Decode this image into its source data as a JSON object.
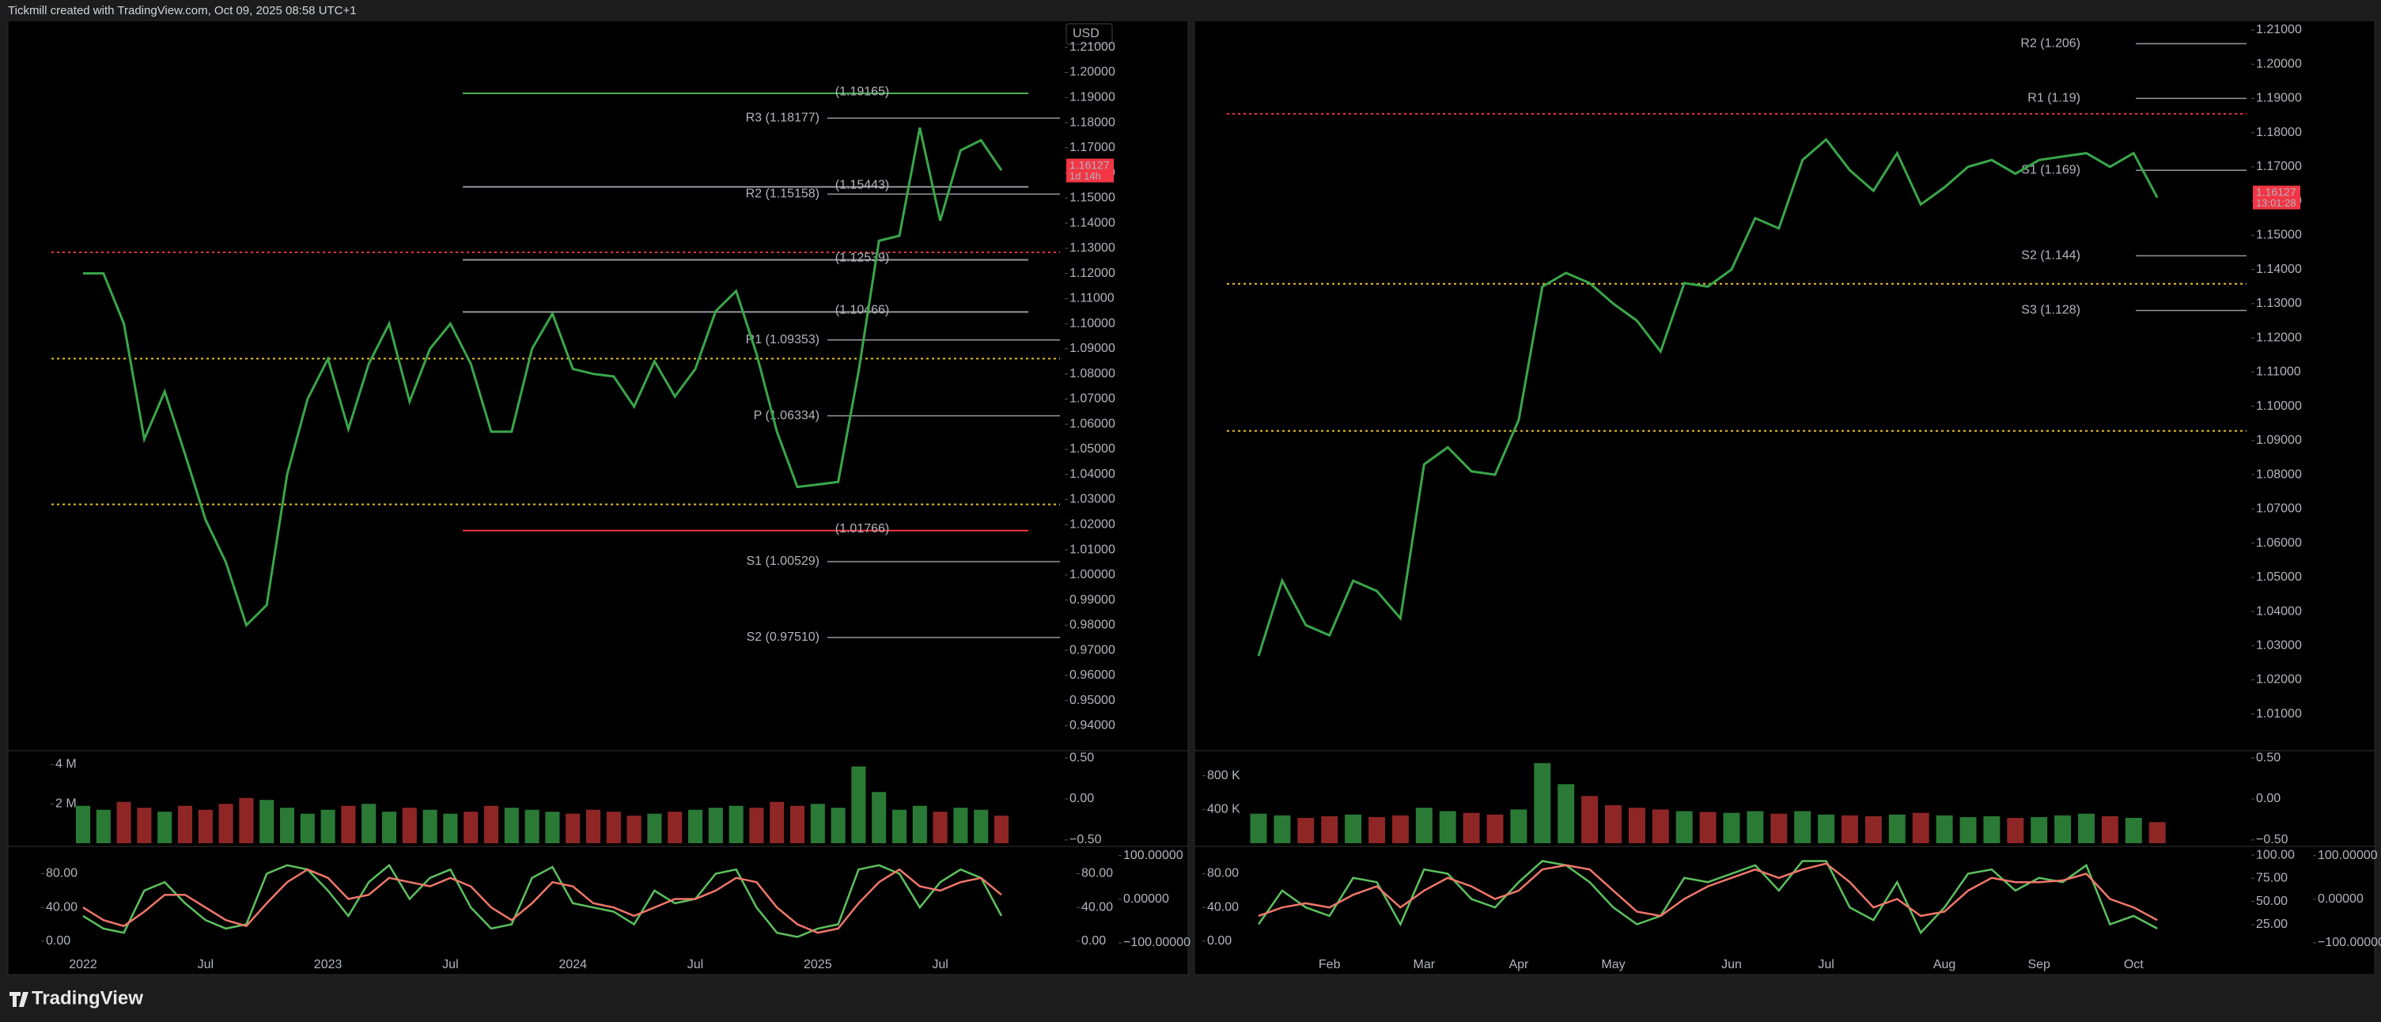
{
  "header": "Tickmill created with TradingView.com, Oct 09, 2025 08:58 UTC+1",
  "logo": "TradingView",
  "chart_data": [
    {
      "type": "line",
      "color": "#3aa64a",
      "currency": "USD",
      "categories": [
        "2022",
        null,
        null,
        null,
        null,
        null,
        "Jul",
        null,
        null,
        null,
        null,
        null,
        "2023",
        null,
        null,
        null,
        null,
        null,
        "Jul",
        null,
        null,
        null,
        null,
        null,
        "2024",
        null,
        null,
        null,
        null,
        null,
        "Jul",
        null,
        null,
        null,
        null,
        null,
        "2025",
        null,
        null,
        null,
        null,
        null,
        "Jul",
        null,
        null,
        null
      ],
      "values": [
        1.12,
        1.12,
        1.1,
        1.054,
        1.073,
        1.048,
        1.022,
        1.005,
        0.98,
        0.988,
        1.04,
        1.07,
        1.086,
        1.058,
        1.084,
        1.1,
        1.069,
        1.09,
        1.1,
        1.084,
        1.057,
        1.057,
        1.09,
        1.104,
        1.082,
        1.08,
        1.079,
        1.067,
        1.085,
        1.071,
        1.082,
        1.105,
        1.113,
        1.088,
        1.057,
        1.035,
        1.036,
        1.037,
        1.081,
        1.133,
        1.135,
        1.178,
        1.141,
        1.169,
        1.173,
        1.161
      ],
      "ylim": [
        0.931,
        1.22
      ],
      "yticks": [
        {
          "value": 1.21,
          "label": "1.21000"
        },
        {
          "value": 1.2,
          "label": "1.20000"
        },
        {
          "value": 1.19,
          "label": "1.19000"
        },
        {
          "value": 1.18,
          "label": "1.18000"
        },
        {
          "value": 1.17,
          "label": "1.17000"
        },
        {
          "value": 1.16,
          "label": "1.16000"
        },
        {
          "value": 1.15,
          "label": "1.15000"
        },
        {
          "value": 1.14,
          "label": "1.14000"
        },
        {
          "value": 1.13,
          "label": "1.13000"
        },
        {
          "value": 1.12,
          "label": "1.12000"
        },
        {
          "value": 1.11,
          "label": "1.11000"
        },
        {
          "value": 1.1,
          "label": "1.10000"
        },
        {
          "value": 1.09,
          "label": "1.09000"
        },
        {
          "value": 1.08,
          "label": "1.08000"
        },
        {
          "value": 1.07,
          "label": "1.07000"
        },
        {
          "value": 1.06,
          "label": "1.06000"
        },
        {
          "value": 1.05,
          "label": "1.05000"
        },
        {
          "value": 1.04,
          "label": "1.04000"
        },
        {
          "value": 1.03,
          "label": "1.03000"
        },
        {
          "value": 1.02,
          "label": "1.02000"
        },
        {
          "value": 1.01,
          "label": "1.01000"
        },
        {
          "value": 1.0,
          "label": "1.00000"
        },
        {
          "value": 0.99,
          "label": "0.99000"
        },
        {
          "value": 0.98,
          "label": "0.98000"
        },
        {
          "value": 0.97,
          "label": "0.97000"
        },
        {
          "value": 0.96,
          "label": "0.96000"
        },
        {
          "value": 0.95,
          "label": "0.95000"
        },
        {
          "value": 0.94,
          "label": "0.94000"
        }
      ],
      "price_tag": {
        "value": 1.16127,
        "label": "1.16127",
        "countdown": "1d 14h"
      },
      "pivots": [
        {
          "value": 1.18177,
          "label": "R3 (1.18177)"
        },
        {
          "value": 1.15158,
          "label": "R2 (1.15158)"
        },
        {
          "value": 1.09353,
          "label": "R1 (1.09353)"
        },
        {
          "value": 1.06334,
          "label": "P (1.06334)"
        },
        {
          "value": 1.00529,
          "label": "S1 (1.00529)"
        },
        {
          "value": 0.9751,
          "label": "S2 (0.97510)"
        }
      ],
      "marked_levels": [
        {
          "value": 1.19165,
          "label": "(1.19165)",
          "color": "#4caf50"
        },
        {
          "value": 1.15443,
          "label": "(1.15443)",
          "color": "#9598a1"
        },
        {
          "value": 1.12539,
          "label": "(1.12539)",
          "color": "#9598a1"
        },
        {
          "value": 1.10466,
          "label": "(1.10466)",
          "color": "#9598a1"
        },
        {
          "value": 1.01766,
          "label": "(1.01766)",
          "color": "#f23645"
        }
      ],
      "dotted_levels": [
        {
          "value": 1.1284,
          "color": "#f23645"
        },
        {
          "value": 1.0861,
          "color": "#e6c229"
        },
        {
          "value": 1.0281,
          "color": "#e6c229"
        }
      ]
    },
    {
      "type": "bar",
      "up_color": "#2a7a35",
      "down_color": "#8f2626",
      "values": [
        1900000,
        1700000,
        2100000,
        1800000,
        1600000,
        1900000,
        1700000,
        2000000,
        2300000,
        2200000,
        1800000,
        1500000,
        1700000,
        1900000,
        2000000,
        1600000,
        1800000,
        1700000,
        1500000,
        1600000,
        1900000,
        1800000,
        1700000,
        1600000,
        1500000,
        1700000,
        1600000,
        1400000,
        1500000,
        1600000,
        1700000,
        1800000,
        1900000,
        1800000,
        2100000,
        1900000,
        2000000,
        1800000,
        3900000,
        2600000,
        1700000,
        1900000,
        1600000,
        1800000,
        1700000,
        1400000
      ],
      "ylim": [
        0,
        4500000
      ],
      "yticks": [
        {
          "value": 4000000,
          "label": "4 M"
        },
        {
          "value": 2000000,
          "label": "2 M"
        }
      ],
      "y2lim": [
        -0.54,
        0.54
      ],
      "y2ticks": [
        {
          "value": 0.5,
          "label": "0.50"
        },
        {
          "value": 0,
          "label": "0.00"
        },
        {
          "value": -0.5,
          "label": "−0.50"
        }
      ]
    },
    {
      "type": "line",
      "series": [
        {
          "name": "%K",
          "color": "#5cc15e",
          "values": [
            30,
            15,
            10,
            60,
            70,
            45,
            25,
            15,
            20,
            80,
            90,
            85,
            60,
            30,
            70,
            90,
            50,
            75,
            85,
            40,
            15,
            20,
            75,
            88,
            45,
            40,
            35,
            20,
            60,
            45,
            50,
            80,
            85,
            40,
            10,
            5,
            15,
            20,
            85,
            90,
            80,
            40,
            70,
            85,
            75,
            30
          ]
        },
        {
          "name": "%D",
          "color": "#f0776a",
          "values": [
            40,
            25,
            18,
            35,
            55,
            55,
            40,
            25,
            18,
            45,
            70,
            85,
            75,
            50,
            55,
            75,
            70,
            65,
            75,
            65,
            40,
            25,
            45,
            70,
            65,
            45,
            40,
            30,
            40,
            50,
            50,
            60,
            75,
            70,
            40,
            20,
            10,
            15,
            45,
            70,
            85,
            65,
            60,
            70,
            75,
            55
          ]
        }
      ],
      "ylim": [
        -17,
        108.6
      ],
      "yticks": [
        {
          "value": 80,
          "label": "80.00"
        },
        {
          "value": 40,
          "label": "40.00"
        },
        {
          "value": 0,
          "label": "0.00"
        }
      ],
      "y2lim": [
        -129,
        114
      ],
      "y2ticks": [
        {
          "value": 100,
          "label": "100.00000"
        },
        {
          "value": 0,
          "label": "0.00000"
        },
        {
          "value": -100,
          "label": "−100.00000"
        }
      ]
    },
    {
      "type": "line",
      "color": "#3aa64a",
      "categories": [
        null,
        null,
        null,
        "Feb",
        null,
        null,
        null,
        "Mar",
        null,
        null,
        null,
        "Apr",
        null,
        null,
        null,
        "May",
        null,
        null,
        null,
        null,
        "Jun",
        null,
        null,
        null,
        "Jul",
        null,
        null,
        null,
        null,
        "Aug",
        null,
        null,
        null,
        "Sep",
        null,
        null,
        null,
        "Oct",
        null
      ],
      "values": [
        1.027,
        1.049,
        1.036,
        1.033,
        1.049,
        1.046,
        1.038,
        1.083,
        1.088,
        1.081,
        1.08,
        1.096,
        1.135,
        1.139,
        1.136,
        1.13,
        1.125,
        1.116,
        1.136,
        1.135,
        1.14,
        1.155,
        1.152,
        1.172,
        1.178,
        1.169,
        1.163,
        1.174,
        1.159,
        1.164,
        1.17,
        1.172,
        1.168,
        1.172,
        1.173,
        1.174,
        1.17,
        1.174,
        1.161
      ],
      "ylim": [
        1.0,
        1.2123
      ],
      "yticks": [
        {
          "value": 1.21,
          "label": "1.21000"
        },
        {
          "value": 1.2,
          "label": "1.20000"
        },
        {
          "value": 1.19,
          "label": "1.19000"
        },
        {
          "value": 1.18,
          "label": "1.18000"
        },
        {
          "value": 1.17,
          "label": "1.17000"
        },
        {
          "value": 1.16,
          "label": "1.16000"
        },
        {
          "value": 1.15,
          "label": "1.15000"
        },
        {
          "value": 1.14,
          "label": "1.14000"
        },
        {
          "value": 1.13,
          "label": "1.13000"
        },
        {
          "value": 1.12,
          "label": "1.12000"
        },
        {
          "value": 1.11,
          "label": "1.11000"
        },
        {
          "value": 1.1,
          "label": "1.10000"
        },
        {
          "value": 1.09,
          "label": "1.09000"
        },
        {
          "value": 1.08,
          "label": "1.08000"
        },
        {
          "value": 1.07,
          "label": "1.07000"
        },
        {
          "value": 1.06,
          "label": "1.06000"
        },
        {
          "value": 1.05,
          "label": "1.05000"
        },
        {
          "value": 1.04,
          "label": "1.04000"
        },
        {
          "value": 1.03,
          "label": "1.03000"
        },
        {
          "value": 1.02,
          "label": "1.02000"
        },
        {
          "value": 1.01,
          "label": "1.01000"
        }
      ],
      "price_tag": {
        "value": 1.16127,
        "label": "1.16127",
        "countdown": "13:01:28"
      },
      "pivots": [
        {
          "value": 1.206,
          "label": "R2 (1.206)"
        },
        {
          "value": 1.19,
          "label": "R1 (1.19)"
        },
        {
          "value": 1.169,
          "label": "S1 (1.169)"
        },
        {
          "value": 1.144,
          "label": "S2 (1.144)"
        },
        {
          "value": 1.128,
          "label": "S3 (1.128)"
        }
      ],
      "dotted_levels": [
        {
          "value": 1.1855,
          "color": "#f23645"
        },
        {
          "value": 1.1358,
          "color": "#e6c229"
        },
        {
          "value": 1.0928,
          "color": "#e6c229"
        }
      ]
    },
    {
      "type": "bar",
      "up_color": "#2a7a35",
      "down_color": "#8f2626",
      "values": [
        350000,
        330000,
        300000,
        320000,
        340000,
        310000,
        330000,
        420000,
        380000,
        360000,
        340000,
        400000,
        950000,
        700000,
        560000,
        450000,
        420000,
        400000,
        380000,
        370000,
        360000,
        380000,
        350000,
        380000,
        340000,
        330000,
        320000,
        340000,
        360000,
        330000,
        310000,
        320000,
        300000,
        310000,
        330000,
        350000,
        320000,
        300000,
        250000
      ],
      "ylim": [
        0,
        1050000
      ],
      "yticks": [
        {
          "value": 800000,
          "label": "800 K"
        },
        {
          "value": 400000,
          "label": "400 K"
        }
      ],
      "y2lim": [
        -0.54,
        0.54
      ],
      "y2ticks": [
        {
          "value": 0.5,
          "label": "0.50"
        },
        {
          "value": 0,
          "label": "0.00"
        },
        {
          "value": -0.5,
          "label": "−0.50"
        }
      ]
    },
    {
      "type": "line",
      "series": [
        {
          "name": "%K",
          "color": "#5cc15e",
          "values": [
            20,
            60,
            40,
            30,
            75,
            70,
            20,
            85,
            80,
            50,
            40,
            70,
            95,
            90,
            70,
            40,
            20,
            30,
            75,
            70,
            80,
            90,
            60,
            95,
            95,
            40,
            25,
            70,
            10,
            40,
            80,
            85,
            60,
            75,
            70,
            90,
            20,
            30,
            15
          ]
        },
        {
          "name": "%D",
          "color": "#f0776a",
          "values": [
            30,
            40,
            45,
            40,
            55,
            65,
            40,
            60,
            75,
            65,
            50,
            60,
            85,
            90,
            85,
            60,
            35,
            30,
            50,
            65,
            75,
            85,
            75,
            85,
            92,
            70,
            40,
            50,
            30,
            35,
            60,
            75,
            70,
            70,
            72,
            80,
            50,
            40,
            25
          ]
        }
      ],
      "ylim": [
        -17,
        108.6
      ],
      "yticks": [
        {
          "value": 80,
          "label": "80.00"
        },
        {
          "value": 40,
          "label": "40.00"
        },
        {
          "value": 0,
          "label": "0.00"
        }
      ],
      "y2lim": [
        -8.3,
        106
      ],
      "y2ticks": [
        {
          "value": 100,
          "label": "100.00"
        },
        {
          "value": 75,
          "label": "75.00"
        },
        {
          "value": 50,
          "label": "50.00"
        },
        {
          "value": 25,
          "label": "25.00"
        }
      ],
      "y3lim": [
        -129,
        114
      ],
      "y3ticks": [
        {
          "value": 100,
          "label": "100.00000"
        },
        {
          "value": 0,
          "label": "0.00000"
        },
        {
          "value": -100,
          "label": "−100.00000"
        }
      ]
    }
  ]
}
